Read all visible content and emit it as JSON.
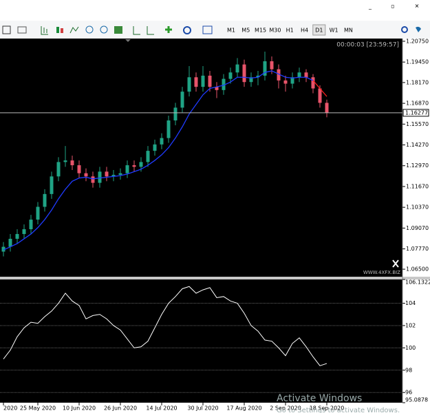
{
  "window": {
    "controls": [
      "_",
      "▫",
      "✕"
    ]
  },
  "toolbar": {
    "timeframes": [
      "M1",
      "M5",
      "M15",
      "M30",
      "H1",
      "H4",
      "D1",
      "W1",
      "MN"
    ],
    "active": "D1"
  },
  "chart_data": [
    {
      "type": "candlestick",
      "timer": "00:00:03 [23:59:57]",
      "watermark": "WWW.4XFX.BIZ",
      "categories": [
        "2020",
        null,
        null,
        null,
        null,
        "25 May 2020",
        null,
        null,
        null,
        null,
        null,
        "10 Jun 2020",
        null,
        null,
        null,
        null,
        null,
        "26 Jun 2020",
        null,
        null,
        null,
        null,
        null,
        "14 Jul 2020",
        null,
        null,
        null,
        null,
        null,
        "30 Jul 2020",
        null,
        null,
        null,
        null,
        null,
        "17 Aug 2020",
        null,
        null,
        null,
        null,
        null,
        "2 Sep 2020",
        null,
        null,
        null,
        null,
        null,
        "18 Sep 2020"
      ],
      "open": [
        1.076,
        1.079,
        1.084,
        1.087,
        1.09,
        1.096,
        1.104,
        1.112,
        1.123,
        1.132,
        1.133,
        1.13,
        1.125,
        1.123,
        1.119,
        1.126,
        1.123,
        1.124,
        1.125,
        1.13,
        1.129,
        1.132,
        1.139,
        1.143,
        1.147,
        1.158,
        1.166,
        1.176,
        1.185,
        1.179,
        1.186,
        1.179,
        1.177,
        1.184,
        1.188,
        1.193,
        1.182,
        1.185,
        1.186,
        1.195,
        1.19,
        1.183,
        1.181,
        1.185,
        1.188,
        1.185,
        1.178,
        1.169
      ],
      "high": [
        1.082,
        1.087,
        1.09,
        1.093,
        1.099,
        1.107,
        1.115,
        1.126,
        1.135,
        1.142,
        1.136,
        1.133,
        1.128,
        1.126,
        1.129,
        1.129,
        1.127,
        1.128,
        1.133,
        1.133,
        1.135,
        1.142,
        1.146,
        1.15,
        1.161,
        1.169,
        1.179,
        1.192,
        1.188,
        1.192,
        1.189,
        1.182,
        1.187,
        1.191,
        1.197,
        1.196,
        1.188,
        1.189,
        1.201,
        1.198,
        1.193,
        1.186,
        1.188,
        1.191,
        1.19,
        1.187,
        1.18,
        1.171
      ],
      "low": [
        1.073,
        1.076,
        1.081,
        1.084,
        1.087,
        1.093,
        1.101,
        1.109,
        1.12,
        1.129,
        1.127,
        1.122,
        1.12,
        1.116,
        1.116,
        1.12,
        1.12,
        1.121,
        1.122,
        1.126,
        1.126,
        1.129,
        1.136,
        1.14,
        1.144,
        1.155,
        1.163,
        1.173,
        1.176,
        1.176,
        1.176,
        1.172,
        1.174,
        1.181,
        1.185,
        1.179,
        1.179,
        1.18,
        1.183,
        1.187,
        1.178,
        1.176,
        1.178,
        1.182,
        1.182,
        1.175,
        1.166,
        1.16
      ],
      "close": [
        1.079,
        1.084,
        1.087,
        1.09,
        1.096,
        1.104,
        1.112,
        1.123,
        1.132,
        1.133,
        1.13,
        1.125,
        1.123,
        1.119,
        1.126,
        1.123,
        1.124,
        1.125,
        1.13,
        1.129,
        1.132,
        1.139,
        1.143,
        1.147,
        1.158,
        1.166,
        1.176,
        1.185,
        1.179,
        1.186,
        1.179,
        1.177,
        1.184,
        1.188,
        1.193,
        1.182,
        1.185,
        1.186,
        1.195,
        1.19,
        1.183,
        1.181,
        1.185,
        1.188,
        1.185,
        1.178,
        1.169,
        1.1628
      ],
      "up_color": "#1fa385",
      "down_color": "#e8546a",
      "series": [
        {
          "color": "#1f3bff",
          "values": [
            1.077,
            1.079,
            1.081,
            1.084,
            1.087,
            1.091,
            1.096,
            1.102,
            1.109,
            1.115,
            1.12,
            1.122,
            1.1225,
            1.1215,
            1.122,
            1.1225,
            1.123,
            1.1235,
            1.1245,
            1.126,
            1.1275,
            1.13,
            1.133,
            1.1365,
            1.141,
            1.147,
            1.154,
            1.162,
            1.168,
            1.174,
            1.178,
            1.179,
            1.18,
            1.182,
            1.185,
            1.185,
            1.1845,
            1.185,
            1.188,
            1.189,
            1.187,
            1.185,
            1.1845,
            1.185,
            1.185,
            1.183,
            null,
            null
          ]
        },
        {
          "color": "#ff2020",
          "values": [
            null,
            null,
            null,
            null,
            null,
            null,
            null,
            null,
            null,
            null,
            null,
            null,
            null,
            null,
            null,
            null,
            null,
            null,
            null,
            null,
            null,
            null,
            null,
            null,
            null,
            null,
            null,
            null,
            null,
            null,
            null,
            null,
            null,
            null,
            null,
            null,
            null,
            null,
            null,
            null,
            null,
            null,
            null,
            null,
            null,
            1.183,
            1.178,
            1.173
          ]
        }
      ],
      "price_line": {
        "value": 1.16277,
        "label": "1.16277"
      },
      "ylim": [
        1.0603,
        1.2092
      ],
      "yticks": [
        {
          "value": 1.2075,
          "label": "1.20750"
        },
        {
          "value": 1.1945,
          "label": "1.19450"
        },
        {
          "value": 1.1817,
          "label": "1.18170"
        },
        {
          "value": 1.1687,
          "label": "1.16870"
        },
        {
          "value": 1.1557,
          "label": "1.15570"
        },
        {
          "value": 1.1427,
          "label": "1.14270"
        },
        {
          "value": 1.1297,
          "label": "1.12970"
        },
        {
          "value": 1.1167,
          "label": "1.11670"
        },
        {
          "value": 1.1037,
          "label": "1.10370"
        },
        {
          "value": 1.0907,
          "label": "1.09070"
        },
        {
          "value": 1.0777,
          "label": "1.07770"
        },
        {
          "value": 1.065,
          "label": "1.06500"
        }
      ]
    },
    {
      "type": "line",
      "color": "#ffffff",
      "values": [
        99.0,
        99.8,
        101.0,
        101.8,
        102.3,
        102.2,
        102.8,
        103.3,
        104.0,
        104.9,
        104.2,
        103.8,
        102.6,
        102.9,
        103.0,
        102.6,
        102.0,
        101.6,
        100.8,
        100.0,
        100.1,
        100.6,
        101.8,
        103.0,
        104.0,
        104.6,
        105.3,
        105.5,
        104.9,
        105.2,
        105.4,
        104.5,
        104.6,
        104.2,
        104.0,
        103.1,
        102.0,
        101.5,
        100.7,
        100.6,
        100.0,
        99.3,
        100.4,
        100.9,
        100.1,
        99.2,
        98.4,
        98.6
      ],
      "ylim": [
        95.0878,
        106.1322
      ],
      "yticks": [
        106.1322,
        104,
        102,
        100,
        98,
        96,
        95.0878
      ],
      "grid": true
    }
  ],
  "overlay": {
    "line1": "Activate Windows",
    "line2": "Go to Settings to activate Windows."
  }
}
